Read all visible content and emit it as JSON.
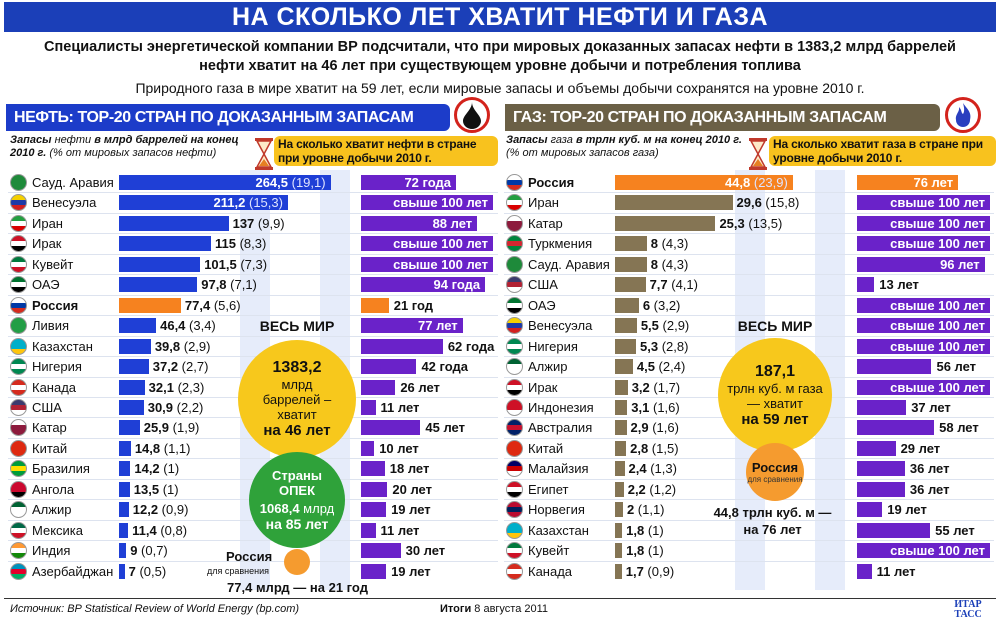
{
  "title": "НА СКОЛЬКО ЛЕТ ХВАТИТ НЕФТИ И ГАЗА",
  "subtitle_line1": "Специалисты энергетической компании BP подсчитали, что при мировых доказанных запасах нефти в 1383,2 млрд баррелей",
  "subtitle_line2": "нефти хватит на 46 лет при существующем уровне добычи и потребления топлива",
  "subtitle_line3": "Природного газа в мире хватит на 59 лет, если мировые запасы и объемы добычи сохранятся на уровне 2010 г.",
  "colors": {
    "oil_bar": "#1f3fd6",
    "gas_bar": "#857554",
    "years_bar": "#6a22c9",
    "russia": "#f6821f",
    "title_bg": "#1b3fb8"
  },
  "oil": {
    "header": "НЕФТЬ: ТОР-20 СТРАН ПО ДОКАЗАННЫМ ЗАПАСАМ",
    "subhead_bold1": "Запасы",
    "subhead_1": " нефти ",
    "subhead_bold2": "в млрд баррелей на конец 2010 г.",
    "subhead_2": " (% от мировых запасов нефти)",
    "callout": "На сколько хватит нефти в стране при уровне добычи 2010 г.",
    "world_label": "ВЕСЬ МИР",
    "world_value": "1383,2",
    "world_text": "млрд баррелей – хватит",
    "world_years": "на 46 лет",
    "opec_title": "Страны ОПЕК",
    "opec_value": "1068,4",
    "opec_unit": "млрд",
    "opec_years": "на 85 лет",
    "russia_label": "Россия",
    "compare_label": "для сравнения",
    "russia_text": "77,4 млрд — на 21 год"
  },
  "gas": {
    "header": "ГАЗ: ТОР-20 СТРАН ПО ДОКАЗАННЫМ ЗАПАСАМ",
    "subhead_bold1": "Запасы",
    "subhead_1": " газа ",
    "subhead_bold2": "в трлн куб. м на конец 2010 г.",
    "subhead_2": " (% от мировых запасов газа)",
    "callout": "На сколько хватит газа в стране при уровне добычи 2010 г.",
    "world_label": "ВЕСЬ МИР",
    "world_value": "187,1",
    "world_text": "трлн куб. м газа — хватит",
    "world_years": "на 59 лет",
    "russia_label": "Россия",
    "compare_label": "для сравнения",
    "russia_text1": "44,8 трлн куб. м —",
    "russia_text2": "на 76 лет"
  },
  "footer": {
    "source": "Источник: BP Statistical Review of World Energy (bp.com)",
    "publication": "Итоги",
    "date": "8 августа 2011",
    "logo": "ИТАР ТАСС"
  },
  "chart_data": [
    {
      "type": "bar",
      "title": "НЕФТЬ: ТОР-20 СТРАН ПО ДОКАЗАННЫМ ЗАПАСАМ",
      "unit": "млрд баррелей",
      "years_title": "На сколько хватит нефти в стране при уровне добычи 2010 г.",
      "rows": [
        {
          "country": "Сауд. Аравия",
          "value": 264.5,
          "value_label": "264,5",
          "pct": "(19,1)",
          "years": 72,
          "years_label": "72 года",
          "flag": [
            "#1e8a3a",
            "#1e8a3a",
            "#1e8a3a"
          ]
        },
        {
          "country": "Венесуэла",
          "value": 211.2,
          "value_label": "211,2",
          "pct": "(15,3)",
          "years": 100,
          "years_label": "свыше 100 лет",
          "flag": [
            "#f5d000",
            "#1d3aa8",
            "#d21f1f"
          ]
        },
        {
          "country": "Иран",
          "value": 137,
          "value_label": "137",
          "pct": "(9,9)",
          "years": 88,
          "years_label": "88 лет",
          "flag": [
            "#239f40",
            "#ffffff",
            "#da0000"
          ]
        },
        {
          "country": "Ирак",
          "value": 115,
          "value_label": "115",
          "pct": "(8,3)",
          "years": 100,
          "years_label": "свыше 100 лет",
          "flag": [
            "#ce1126",
            "#ffffff",
            "#000000"
          ]
        },
        {
          "country": "Кувейт",
          "value": 101.5,
          "value_label": "101,5",
          "pct": "(7,3)",
          "years": 100,
          "years_label": "свыше 100 лет",
          "flag": [
            "#007a3d",
            "#ffffff",
            "#ce1126"
          ]
        },
        {
          "country": "ОАЭ",
          "value": 97.8,
          "value_label": "97,8",
          "pct": "(7,1)",
          "years": 94,
          "years_label": "94 года",
          "flag": [
            "#00732f",
            "#ffffff",
            "#000000"
          ]
        },
        {
          "country": "Россия",
          "value": 77.4,
          "value_label": "77,4",
          "pct": "(5,6)",
          "years": 21,
          "years_label": "21 год",
          "russia": true,
          "flag": [
            "#ffffff",
            "#0039a6",
            "#d52b1e"
          ]
        },
        {
          "country": "Ливия",
          "value": 46.4,
          "value_label": "46,4",
          "pct": "(3,4)",
          "years": 77,
          "years_label": "77 лет",
          "flag": [
            "#239e46",
            "#239e46",
            "#239e46"
          ]
        },
        {
          "country": "Казахстан",
          "value": 39.8,
          "value_label": "39,8",
          "pct": "(2,9)",
          "years": 62,
          "years_label": "62 года",
          "flag": [
            "#00afca",
            "#00afca",
            "#fec50c"
          ]
        },
        {
          "country": "Нигерия",
          "value": 37.2,
          "value_label": "37,2",
          "pct": "(2,7)",
          "years": 42,
          "years_label": "42 года",
          "flag": [
            "#008751",
            "#ffffff",
            "#008751"
          ]
        },
        {
          "country": "Канада",
          "value": 32.1,
          "value_label": "32,1",
          "pct": "(2,3)",
          "years": 26,
          "years_label": "26 лет",
          "flag": [
            "#d52b1e",
            "#ffffff",
            "#d52b1e"
          ]
        },
        {
          "country": "США",
          "value": 30.9,
          "value_label": "30,9",
          "pct": "(2,2)",
          "years": 11,
          "years_label": "11 лет",
          "flag": [
            "#3c3b6e",
            "#b22234",
            "#ffffff"
          ]
        },
        {
          "country": "Катар",
          "value": 25.9,
          "value_label": "25,9",
          "pct": "(1,9)",
          "years": 45,
          "years_label": "45 лет",
          "flag": [
            "#ffffff",
            "#8d1b3d",
            "#8d1b3d"
          ]
        },
        {
          "country": "Китай",
          "value": 14.8,
          "value_label": "14,8",
          "pct": "(1,1)",
          "years": 10,
          "years_label": "10 лет",
          "flag": [
            "#de2910",
            "#de2910",
            "#de2910"
          ]
        },
        {
          "country": "Бразилия",
          "value": 14.2,
          "value_label": "14,2",
          "pct": "(1)",
          "years": 18,
          "years_label": "18 лет",
          "flag": [
            "#009c3b",
            "#ffdf00",
            "#009c3b"
          ]
        },
        {
          "country": "Ангола",
          "value": 13.5,
          "value_label": "13,5",
          "pct": "(1)",
          "years": 20,
          "years_label": "20 лет",
          "flag": [
            "#cc092f",
            "#cc092f",
            "#000000"
          ]
        },
        {
          "country": "Алжир",
          "value": 12.2,
          "value_label": "12,2",
          "pct": "(0,9)",
          "years": 19,
          "years_label": "19 лет",
          "flag": [
            "#006233",
            "#ffffff",
            "#ffffff"
          ]
        },
        {
          "country": "Мексика",
          "value": 11.4,
          "value_label": "11,4",
          "pct": "(0,8)",
          "years": 11,
          "years_label": "11 лет",
          "flag": [
            "#006847",
            "#ffffff",
            "#ce1126"
          ]
        },
        {
          "country": "Индия",
          "value": 9,
          "value_label": "9",
          "pct": "(0,7)",
          "years": 30,
          "years_label": "30 лет",
          "flag": [
            "#ff9933",
            "#ffffff",
            "#138808"
          ]
        },
        {
          "country": "Азербайджан",
          "value": 7,
          "value_label": "7",
          "pct": "(0,5)",
          "years": 19,
          "years_label": "19 лет",
          "flag": [
            "#0092bc",
            "#e4002b",
            "#00af66"
          ]
        }
      ]
    },
    {
      "type": "bar",
      "title": "ГАЗ: ТОР-20 СТРАН ПО ДОКАЗАННЫМ ЗАПАСАМ",
      "unit": "трлн куб. м",
      "years_title": "На сколько хватит газа в стране при уровне добычи 2010 г.",
      "rows": [
        {
          "country": "Россия",
          "value": 44.8,
          "value_label": "44,8",
          "pct": "(23,9)",
          "years": 76,
          "years_label": "76 лет",
          "russia": true,
          "flag": [
            "#ffffff",
            "#0039a6",
            "#d52b1e"
          ]
        },
        {
          "country": "Иран",
          "value": 29.6,
          "value_label": "29,6",
          "pct": "(15,8)",
          "years": 100,
          "years_label": "свыше 100 лет",
          "flag": [
            "#239f40",
            "#ffffff",
            "#da0000"
          ]
        },
        {
          "country": "Катар",
          "value": 25.3,
          "value_label": "25,3",
          "pct": "(13,5)",
          "years": 100,
          "years_label": "свыше 100 лет",
          "flag": [
            "#ffffff",
            "#8d1b3d",
            "#8d1b3d"
          ]
        },
        {
          "country": "Туркмения",
          "value": 8,
          "value_label": "8",
          "pct": "(4,3)",
          "years": 100,
          "years_label": "свыше 100 лет",
          "flag": [
            "#00843d",
            "#d22630",
            "#00843d"
          ]
        },
        {
          "country": "Сауд. Аравия",
          "value": 8,
          "value_label": "8",
          "pct": "(4,3)",
          "years": 96,
          "years_label": "96 лет",
          "flag": [
            "#1e8a3a",
            "#1e8a3a",
            "#1e8a3a"
          ]
        },
        {
          "country": "США",
          "value": 7.7,
          "value_label": "7,7",
          "pct": "(4,1)",
          "years": 13,
          "years_label": "13 лет",
          "flag": [
            "#3c3b6e",
            "#b22234",
            "#ffffff"
          ]
        },
        {
          "country": "ОАЭ",
          "value": 6,
          "value_label": "6",
          "pct": "(3,2)",
          "years": 100,
          "years_label": "свыше 100 лет",
          "flag": [
            "#00732f",
            "#ffffff",
            "#000000"
          ]
        },
        {
          "country": "Венесуэла",
          "value": 5.5,
          "value_label": "5,5",
          "pct": "(2,9)",
          "years": 100,
          "years_label": "свыше 100 лет",
          "flag": [
            "#f5d000",
            "#1d3aa8",
            "#d21f1f"
          ]
        },
        {
          "country": "Нигерия",
          "value": 5.3,
          "value_label": "5,3",
          "pct": "(2,8)",
          "years": 100,
          "years_label": "свыше 100 лет",
          "flag": [
            "#008751",
            "#ffffff",
            "#008751"
          ]
        },
        {
          "country": "Алжир",
          "value": 4.5,
          "value_label": "4,5",
          "pct": "(2,4)",
          "years": 56,
          "years_label": "56 лет",
          "flag": [
            "#006233",
            "#ffffff",
            "#ffffff"
          ]
        },
        {
          "country": "Ирак",
          "value": 3.2,
          "value_label": "3,2",
          "pct": "(1,7)",
          "years": 100,
          "years_label": "свыше 100 лет",
          "flag": [
            "#ce1126",
            "#ffffff",
            "#000000"
          ]
        },
        {
          "country": "Индонезия",
          "value": 3.1,
          "value_label": "3,1",
          "pct": "(1,6)",
          "years": 37,
          "years_label": "37 лет",
          "flag": [
            "#ce1126",
            "#ce1126",
            "#ffffff"
          ]
        },
        {
          "country": "Австралия",
          "value": 2.9,
          "value_label": "2,9",
          "pct": "(1,6)",
          "years": 58,
          "years_label": "58 лет",
          "flag": [
            "#012169",
            "#c8102e",
            "#012169"
          ]
        },
        {
          "country": "Китай",
          "value": 2.8,
          "value_label": "2,8",
          "pct": "(1,5)",
          "years": 29,
          "years_label": "29 лет",
          "flag": [
            "#de2910",
            "#de2910",
            "#de2910"
          ]
        },
        {
          "country": "Малайзия",
          "value": 2.4,
          "value_label": "2,4",
          "pct": "(1,3)",
          "years": 36,
          "years_label": "36 лет",
          "flag": [
            "#010066",
            "#cc0001",
            "#ffffff"
          ]
        },
        {
          "country": "Египет",
          "value": 2.2,
          "value_label": "2,2",
          "pct": "(1,2)",
          "years": 36,
          "years_label": "36 лет",
          "flag": [
            "#ce1126",
            "#ffffff",
            "#000000"
          ]
        },
        {
          "country": "Норвегия",
          "value": 2,
          "value_label": "2",
          "pct": "(1,1)",
          "years": 19,
          "years_label": "19 лет",
          "flag": [
            "#ba0c2f",
            "#00205b",
            "#ba0c2f"
          ]
        },
        {
          "country": "Казахстан",
          "value": 1.8,
          "value_label": "1,8",
          "pct": "(1)",
          "years": 55,
          "years_label": "55 лет",
          "flag": [
            "#00afca",
            "#00afca",
            "#fec50c"
          ]
        },
        {
          "country": "Кувейт",
          "value": 1.8,
          "value_label": "1,8",
          "pct": "(1)",
          "years": 100,
          "years_label": "свыше 100 лет",
          "flag": [
            "#007a3d",
            "#ffffff",
            "#ce1126"
          ]
        },
        {
          "country": "Канада",
          "value": 1.7,
          "value_label": "1,7",
          "pct": "(0,9)",
          "years": 11,
          "years_label": "11 лет",
          "flag": [
            "#d52b1e",
            "#ffffff",
            "#d52b1e"
          ]
        }
      ]
    }
  ]
}
